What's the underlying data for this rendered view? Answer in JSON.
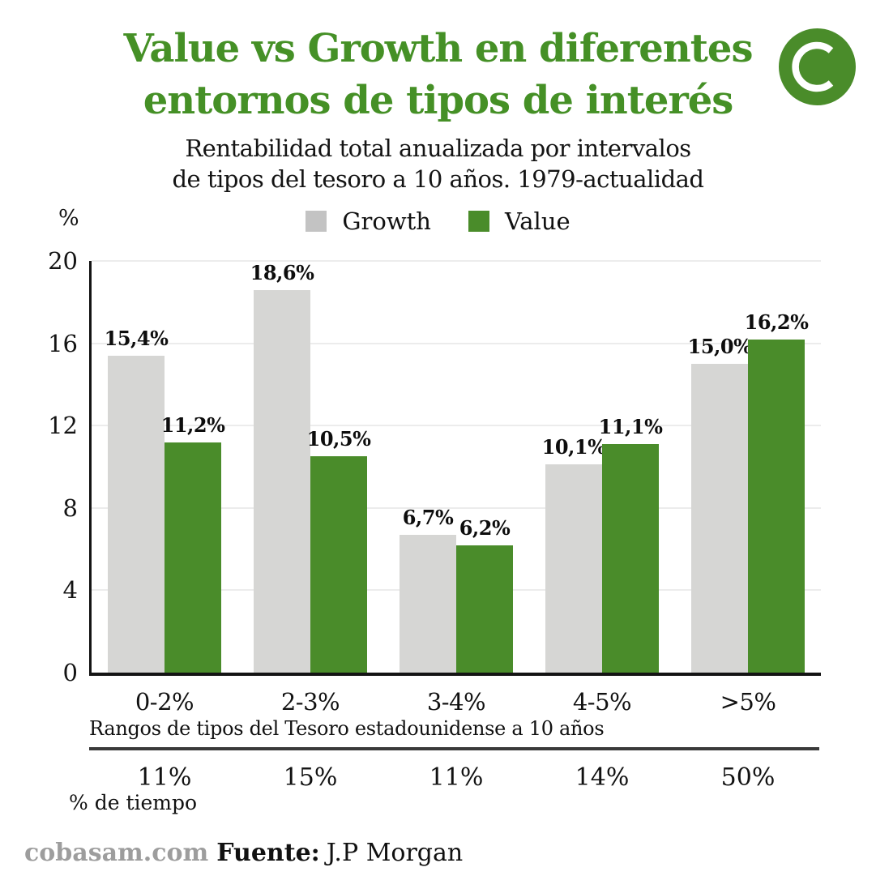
{
  "branding": {
    "logo_letter": "C"
  },
  "colors": {
    "brand_green": "#4a8c2a",
    "title_green": "#459026",
    "bar_gray": "#d6d6d4",
    "legend_gray": "#c3c3c3",
    "footer_site_gray": "#9d9d9d"
  },
  "chart_data": {
    "type": "bar",
    "title": "Value vs Growth en diferentes entornos de tipos de interés",
    "title_lines": [
      "Value vs Growth en diferentes",
      "entornos de tipos de interés"
    ],
    "subtitle": "Rentabilidad total anualizada por intervalos de tipos del tesoro a 10 años. 1979-actualidad",
    "subtitle_lines": [
      "Rentabilidad total anualizada por intervalos",
      "de tipos del tesoro a 10 años. 1979-actualidad"
    ],
    "unit_label": "%",
    "legend_position": "top",
    "grid": true,
    "categories": [
      "0-2%",
      "2-3%",
      "3-4%",
      "4-5%",
      ">5%"
    ],
    "series": [
      {
        "name": "Growth",
        "color": "#d6d6d4",
        "legend_color": "#c3c3c3",
        "values": [
          15.4,
          18.6,
          6.7,
          10.1,
          15.0
        ],
        "labels": [
          "15,4%",
          "18,6%",
          "6,7%",
          "10,1%",
          "15,0%"
        ]
      },
      {
        "name": "Value",
        "color": "#4a8c2a",
        "legend_color": "#4a8c2a",
        "values": [
          11.2,
          10.5,
          6.2,
          11.1,
          16.2
        ],
        "labels": [
          "11,2%",
          "10,5%",
          "6,2%",
          "11,1%",
          "16,2%"
        ]
      }
    ],
    "yaxis": {
      "ticks": [
        0,
        4,
        8,
        12,
        16,
        20
      ],
      "max": 20
    },
    "xlabel": "Rangos de tipos del Tesoro estadounidense a 10 años",
    "time_row": {
      "label": "% de tiempo",
      "values": [
        "11%",
        "15%",
        "11%",
        "14%",
        "50%"
      ]
    }
  },
  "footer": {
    "site": "cobasam.com",
    "source_label": "Fuente:",
    "source": "J.P Morgan"
  }
}
